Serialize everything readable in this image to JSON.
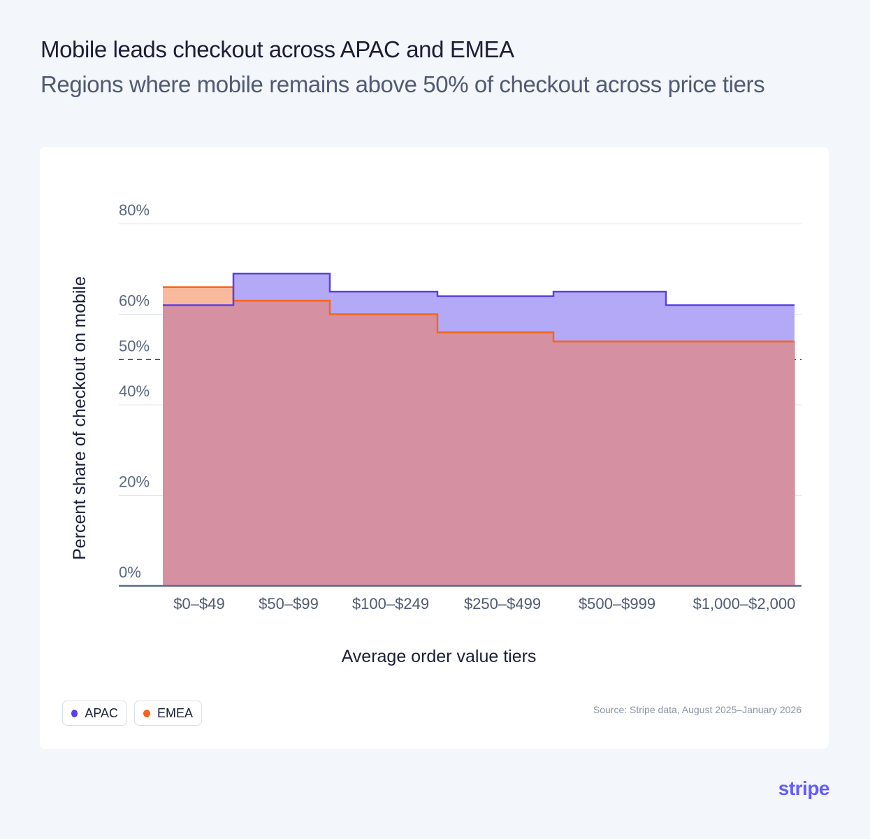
{
  "header": {
    "title": "Mobile leads checkout across APAC and EMEA",
    "subtitle": "Regions where mobile remains above 50% of checkout across price tiers"
  },
  "chart_data": {
    "type": "area",
    "step": true,
    "xlabel": "Average order value tiers",
    "ylabel": "Percent share of checkout on mobile",
    "ylim": [
      0,
      80
    ],
    "yticks": [
      0,
      20,
      40,
      50,
      60,
      80
    ],
    "ytick_labels": [
      "0%",
      "20%",
      "40%",
      "50%",
      "60%",
      "80%"
    ],
    "reference_line": {
      "value": 50,
      "style": "dashed"
    },
    "categories": [
      "$0–$49",
      "$50–$99",
      "$100–$249",
      "$250–$499",
      "$500–$999",
      "$1,000–$2,000"
    ],
    "series": [
      {
        "name": "APAC",
        "color": "#5b3fe8",
        "fill": "#b3a9f7",
        "values": [
          62,
          69,
          65,
          64,
          65,
          62
        ]
      },
      {
        "name": "EMEA",
        "color": "#f5651f",
        "fill": "#f9b99c",
        "values": [
          66,
          63,
          60,
          56,
          54,
          54
        ]
      }
    ],
    "overlap_fill": "#d590a1",
    "grid": true,
    "legend_position": "bottom-left",
    "source": "Source: Stripe data, August 2025–January 2026"
  },
  "legend": {
    "apac_label": "APAC",
    "emea_label": "EMEA"
  },
  "source": "Source: Stripe data, August 2025–January 2026",
  "brand": {
    "logo_text": "stripe",
    "color": "#635bff"
  }
}
